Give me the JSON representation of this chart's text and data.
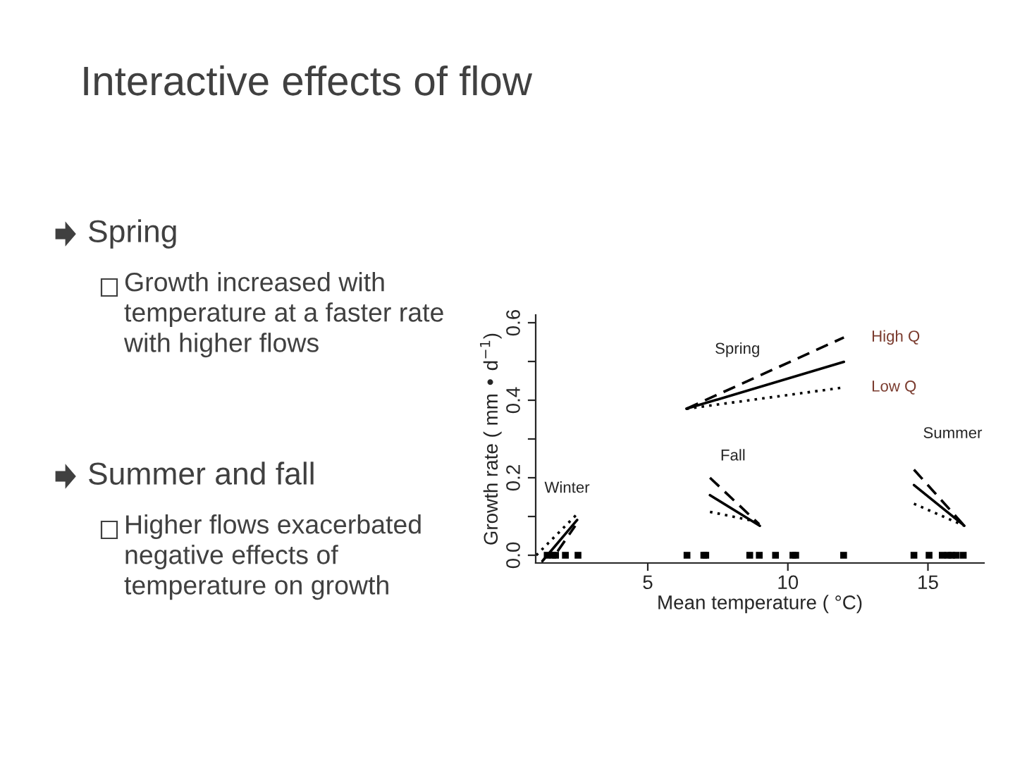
{
  "chart_data": {
    "type": "line",
    "title": "Interactive effects of flow",
    "xlabel": "Mean temperature ( °C)",
    "ylabel": "Growth rate ( mm • d$^{−1}$)",
    "xlim": [
      1.0,
      17.0
    ],
    "ylim": [
      -0.02,
      0.62
    ],
    "xticks": [
      5,
      10,
      15
    ],
    "yticks": [
      {
        "value": 0,
        "label": "0.0"
      },
      {
        "value": 0.1,
        "label": null
      },
      0.2,
      {
        "value": 0.3,
        "label": null
      },
      0.4,
      {
        "value": 0.5,
        "label": null
      },
      0.6
    ],
    "grid": false,
    "legend": false,
    "marker": "none",
    "series": [
      {
        "color": "#000000",
        "line_style": "dashed",
        "x": [
          6.38,
          12.0
        ],
        "values": [
          0.378,
          0.562
        ]
      },
      {
        "color": "#000000",
        "line_style": "solid",
        "x": [
          6.38,
          12.0
        ],
        "values": [
          0.378,
          0.499
        ]
      },
      {
        "color": "#000000",
        "line_style": "dotted",
        "x": [
          6.38,
          12.0
        ],
        "values": [
          0.378,
          0.433
        ]
      },
      {
        "color": "#000000",
        "line_style": "dashed",
        "x": [
          7.22,
          8.98
        ],
        "values": [
          0.2,
          0.08
        ]
      },
      {
        "color": "#000000",
        "line_style": "solid",
        "x": [
          7.22,
          9.0
        ],
        "values": [
          0.155,
          0.076
        ]
      },
      {
        "color": "#000000",
        "line_style": "dotted",
        "x": [
          7.22,
          8.81
        ],
        "values": [
          0.112,
          0.088
        ]
      },
      {
        "color": "#000000",
        "line_style": "dashed",
        "x": [
          14.5,
          16.3
        ],
        "values": [
          0.221,
          0.076
        ]
      },
      {
        "color": "#000000",
        "line_style": "solid",
        "x": [
          14.5,
          16.3
        ],
        "values": [
          0.181,
          0.076
        ]
      },
      {
        "color": "#000000",
        "line_style": "dotted",
        "x": [
          14.5,
          16.3
        ],
        "values": [
          0.133,
          0.076
        ]
      },
      {
        "color": "#000000",
        "line_style": "dotted",
        "x": [
          1.02,
          2.53
        ],
        "values": [
          0.0,
          0.11
        ]
      },
      {
        "color": "#000000",
        "line_style": "solid",
        "x": [
          1.24,
          2.48
        ],
        "values": [
          -0.015,
          0.091
        ]
      },
      {
        "color": "#000000",
        "line_style": "dashed",
        "x": [
          1.78,
          2.41
        ],
        "values": [
          0.01,
          0.076
        ]
      },
      {
        "type": "scatter",
        "marker": "square",
        "color": "#000000",
        "x": [
          1.41,
          1.61,
          1.71,
          2.06,
          2.51,
          6.4,
          7.0,
          7.07,
          8.64,
          8.98,
          9.56,
          10.18,
          10.28,
          11.99,
          14.5,
          15.04,
          15.51,
          15.71,
          15.85,
          16.01,
          16.26
        ],
        "values": [
          0,
          0,
          0,
          0,
          0,
          0,
          0,
          0,
          0,
          0,
          0,
          0,
          0,
          0,
          0,
          0,
          0,
          0,
          0,
          0,
          0
        ]
      }
    ],
    "annotations": [
      {
        "text": "High Q",
        "x": 12.0,
        "y": 0.562
      },
      {
        "text": "Low Q",
        "x": 12.0,
        "y": 0.433
      },
      "Spring",
      "Fall",
      "Summer",
      "Winter",
      "Spring",
      "Growth increased with temperature at a faster rate with higher flows",
      "Summer and fall",
      "Higher flows exacerbated negative effects of temperature on growth"
    ]
  }
}
